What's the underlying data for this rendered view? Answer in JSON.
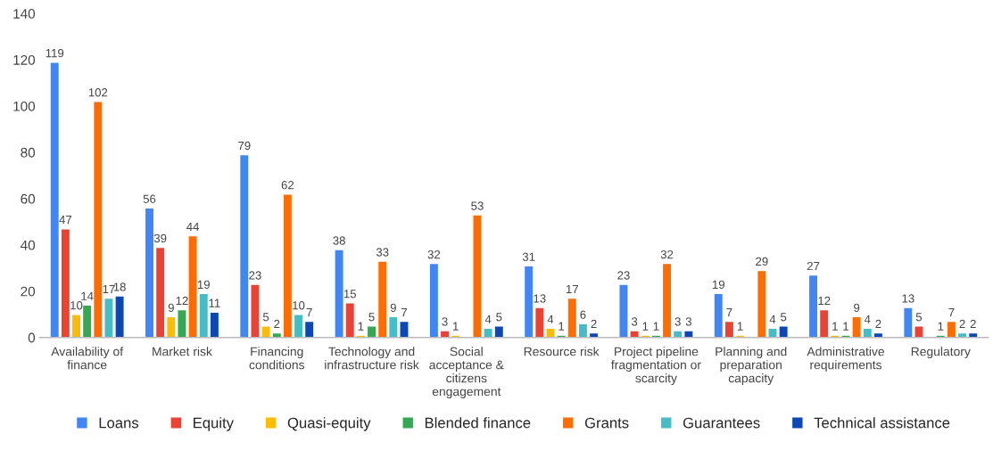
{
  "chart_data": {
    "type": "bar",
    "categories": [
      "Availability of\nfinance",
      "Market risk",
      "Financing\nconditions",
      "Technology and\ninfrastructure risk",
      "Social\nacceptance &\ncitizens\nengagement",
      "Resource risk",
      "Project pipeline\nfragmentation or\nscarcity",
      "Planning and\npreparation\ncapacity",
      "Administrative\nrequirements",
      "Regulatory"
    ],
    "series": [
      {
        "name": "Loans",
        "color": "#4285f4",
        "values": [
          119,
          56,
          79,
          38,
          32,
          31,
          23,
          19,
          27,
          13
        ]
      },
      {
        "name": "Equity",
        "color": "#ea4335",
        "values": [
          47,
          39,
          23,
          15,
          3,
          13,
          3,
          7,
          12,
          5
        ]
      },
      {
        "name": "Quasi-equity",
        "color": "#fbbc04",
        "values": [
          10,
          9,
          5,
          1,
          1,
          4,
          1,
          1,
          1,
          null
        ]
      },
      {
        "name": "Blended finance",
        "color": "#34a853",
        "values": [
          14,
          12,
          2,
          5,
          null,
          1,
          1,
          null,
          1,
          1
        ]
      },
      {
        "name": "Grants",
        "color": "#ff6d01",
        "values": [
          102,
          44,
          62,
          33,
          53,
          17,
          32,
          29,
          9,
          7
        ]
      },
      {
        "name": "Guarantees",
        "color": "#46bdc6",
        "values": [
          17,
          19,
          10,
          9,
          4,
          6,
          3,
          4,
          4,
          2
        ]
      },
      {
        "name": "Technical assistance",
        "color": "#0b47b5",
        "values": [
          18,
          11,
          7,
          7,
          5,
          2,
          3,
          5,
          2,
          2
        ]
      }
    ],
    "ylim": [
      0,
      140
    ],
    "yticks": [
      0,
      20,
      40,
      60,
      80,
      100,
      120,
      140
    ],
    "data_labels": true,
    "grid": false,
    "legend": "bottom"
  }
}
